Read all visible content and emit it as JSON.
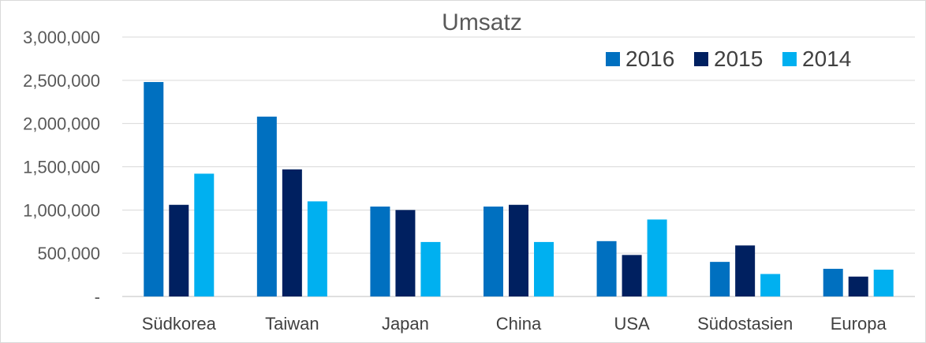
{
  "chart_data": {
    "type": "bar",
    "title": "Umsatz",
    "xlabel": "",
    "ylabel": "",
    "categories": [
      "Südkorea",
      "Taiwan",
      "Japan",
      "China",
      "USA",
      "Südostasien",
      "Europa"
    ],
    "series": [
      {
        "name": "2016",
        "color": "#0070C0",
        "values": [
          2480000,
          2080000,
          1040000,
          1040000,
          640000,
          400000,
          320000
        ]
      },
      {
        "name": "2015",
        "color": "#002060",
        "values": [
          1060000,
          1470000,
          1000000,
          1060000,
          480000,
          590000,
          230000
        ]
      },
      {
        "name": "2014",
        "color": "#00B0F0",
        "values": [
          1420000,
          1100000,
          630000,
          630000,
          890000,
          260000,
          310000
        ]
      }
    ],
    "ylim": [
      0,
      3000000
    ],
    "yticks": [
      0,
      500000,
      1000000,
      1500000,
      2000000,
      2500000,
      3000000
    ],
    "ytick_labels": [
      "-",
      "500,000",
      "1,000,000",
      "1,500,000",
      "2,000,000",
      "2,500,000",
      "3,000,000"
    ],
    "grid": true,
    "legend_position": "top-right"
  }
}
